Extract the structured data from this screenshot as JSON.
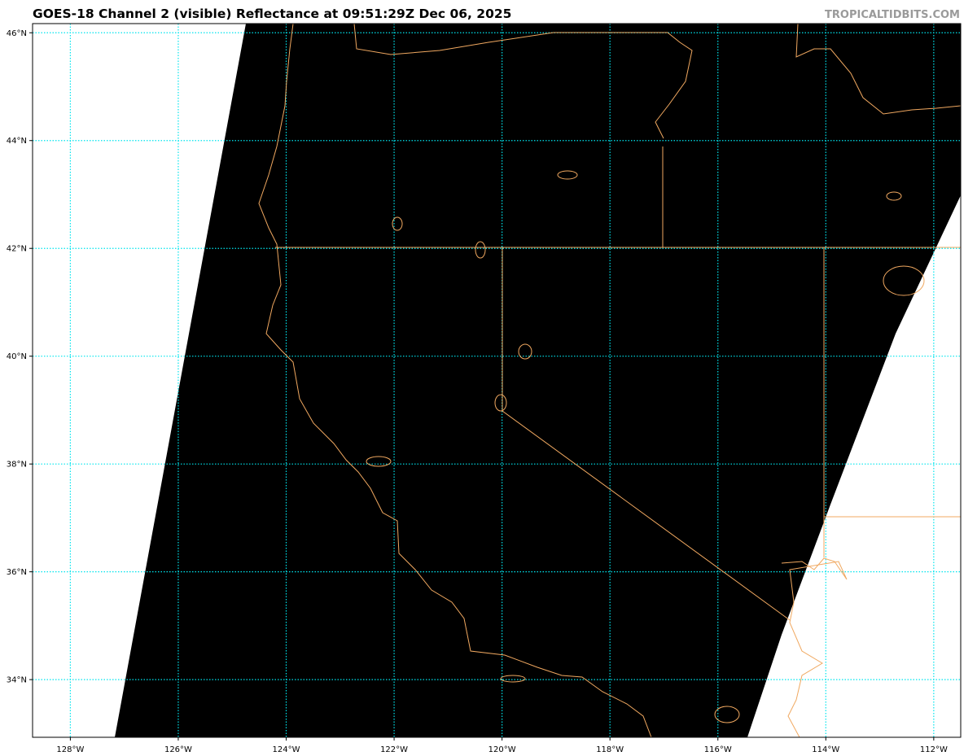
{
  "title": "GOES-18 Channel 2 (visible) Reflectance at 09:51:29Z Dec 06, 2025",
  "credit": "TROPICALTIDBITS.COM",
  "map": {
    "projection": "equirectangular",
    "lon_range": [
      -128.7,
      -111.5
    ],
    "lat_range": [
      32.93,
      46.17
    ],
    "lat_ticks": [
      {
        "value": 46,
        "label": "46°N"
      },
      {
        "value": 44,
        "label": "44°N"
      },
      {
        "value": 42,
        "label": "42°N"
      },
      {
        "value": 40,
        "label": "40°N"
      },
      {
        "value": 38,
        "label": "38°N"
      },
      {
        "value": 36,
        "label": "36°N"
      },
      {
        "value": 34,
        "label": "34°N"
      }
    ],
    "lon_ticks": [
      {
        "value": -128,
        "label": "128°W"
      },
      {
        "value": -126,
        "label": "126°W"
      },
      {
        "value": -124,
        "label": "124°W"
      },
      {
        "value": -122,
        "label": "122°W"
      },
      {
        "value": -120,
        "label": "120°W"
      },
      {
        "value": -118,
        "label": "118°W"
      },
      {
        "value": -116,
        "label": "116°W"
      },
      {
        "value": -114,
        "label": "114°W"
      },
      {
        "value": -112,
        "label": "112°W"
      }
    ],
    "colors": {
      "imagery": "#000000",
      "no_data": "#ffffff",
      "gridlines": "#00e5ee",
      "borders": "#f0a860"
    }
  }
}
